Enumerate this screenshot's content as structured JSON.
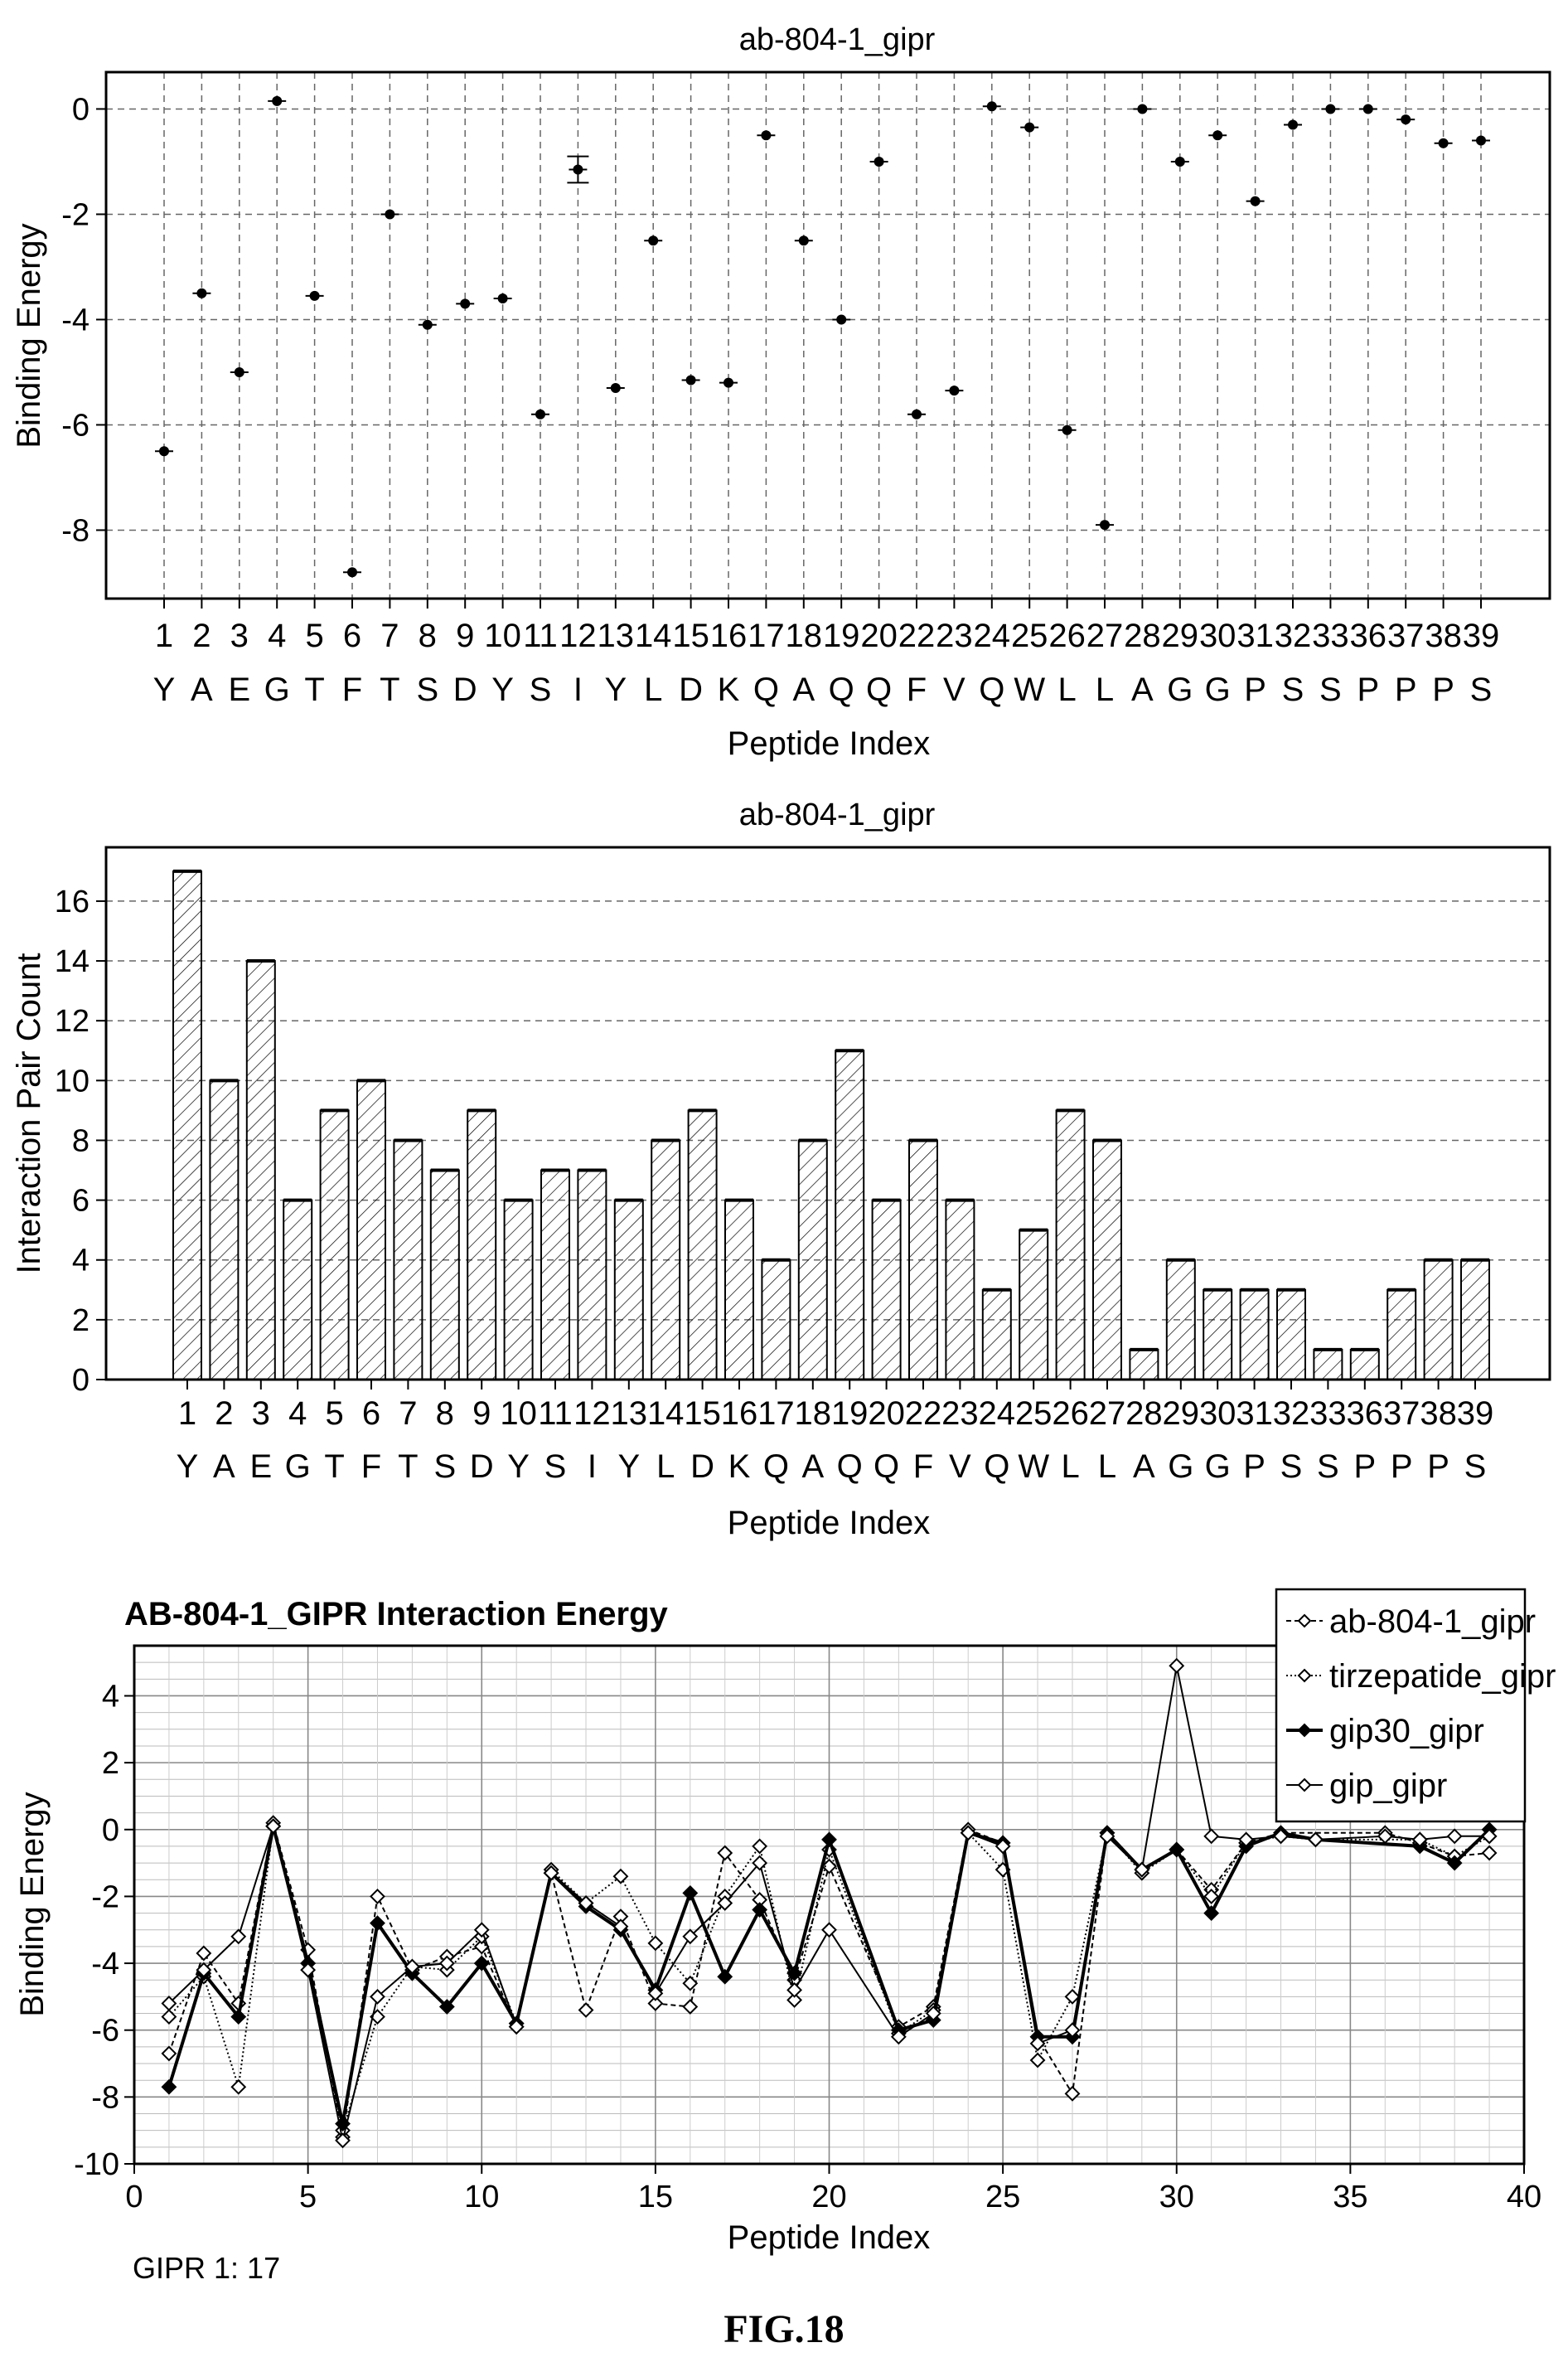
{
  "figure_label": "FIG.18",
  "chart_data": [
    {
      "type": "scatter",
      "title": "ab-804-1_gipr",
      "xlabel": "Peptide Index",
      "ylabel": "Binding Energy",
      "ylim": [
        -9.3,
        0.7
      ],
      "yticks": [
        0,
        -2,
        -4,
        -6,
        -8
      ],
      "grid": true,
      "categories": [
        "1",
        "2",
        "3",
        "4",
        "5",
        "6",
        "7",
        "8",
        "9",
        "10",
        "11",
        "12",
        "13",
        "14",
        "15",
        "16",
        "17",
        "18",
        "19",
        "20",
        "22",
        "23",
        "24",
        "25",
        "26",
        "27",
        "28",
        "29",
        "30",
        "31",
        "32",
        "33",
        "36",
        "37",
        "38",
        "39"
      ],
      "residues": [
        "Y",
        "A",
        "E",
        "G",
        "T",
        "F",
        "T",
        "S",
        "D",
        "Y",
        "S",
        "I",
        "Y",
        "L",
        "D",
        "K",
        "Q",
        "A",
        "Q",
        "Q",
        "F",
        "V",
        "Q",
        "W",
        "L",
        "L",
        "A",
        "G",
        "G",
        "P",
        "S",
        "S",
        "P",
        "P",
        "P",
        "S"
      ],
      "values": [
        -6.5,
        -3.5,
        -5.0,
        0.15,
        -3.55,
        -8.8,
        -2.0,
        -4.1,
        -3.7,
        -3.6,
        -5.8,
        -1.15,
        -5.3,
        -2.5,
        -5.15,
        -5.2,
        -0.5,
        -2.5,
        -4.0,
        -1.0,
        -5.8,
        -5.35,
        0.05,
        -0.35,
        -6.1,
        -7.9,
        0.0,
        -1.0,
        -0.5,
        -1.75,
        -0.3,
        0.0,
        0.0,
        -0.2,
        -0.65,
        -0.6
      ],
      "error": [
        0,
        0,
        0,
        0,
        0,
        0,
        0,
        0,
        0,
        0,
        0,
        0.25,
        0,
        0,
        0,
        0,
        0,
        0,
        0,
        0,
        0,
        0,
        0,
        0,
        0,
        0,
        0,
        0,
        0,
        0,
        0,
        0,
        0,
        0,
        0,
        0
      ]
    },
    {
      "type": "bar",
      "title": "ab-804-1_gipr",
      "xlabel": "Peptide Index",
      "ylabel": "Interaction Pair Count",
      "ylim": [
        0,
        17.8
      ],
      "yticks": [
        0,
        2,
        4,
        6,
        8,
        10,
        12,
        14,
        16
      ],
      "grid": true,
      "categories": [
        "1",
        "2",
        "3",
        "4",
        "5",
        "6",
        "7",
        "8",
        "9",
        "10",
        "11",
        "12",
        "13",
        "14",
        "15",
        "16",
        "17",
        "18",
        "19",
        "20",
        "22",
        "23",
        "24",
        "25",
        "26",
        "27",
        "28",
        "29",
        "30",
        "31",
        "32",
        "33",
        "36",
        "37",
        "38",
        "39"
      ],
      "residues": [
        "Y",
        "A",
        "E",
        "G",
        "T",
        "F",
        "T",
        "S",
        "D",
        "Y",
        "S",
        "I",
        "Y",
        "L",
        "D",
        "K",
        "Q",
        "A",
        "Q",
        "Q",
        "F",
        "V",
        "Q",
        "W",
        "L",
        "L",
        "A",
        "G",
        "G",
        "P",
        "S",
        "S",
        "P",
        "P",
        "P",
        "S"
      ],
      "values": [
        17,
        10,
        14,
        6,
        9,
        10,
        8,
        7,
        9,
        6,
        7,
        7,
        6,
        8,
        9,
        6,
        4,
        8,
        11,
        6,
        8,
        6,
        3,
        5,
        9,
        8,
        1,
        4,
        3,
        3,
        3,
        1,
        1,
        3,
        4,
        4
      ]
    },
    {
      "type": "line",
      "title": "AB-804-1_GIPR Interaction Energy",
      "xlabel": "Peptide Index",
      "ylabel": "Binding Energy",
      "xlim": [
        0,
        40
      ],
      "ylim": [
        -10,
        5.5
      ],
      "xticks": [
        0,
        5,
        10,
        15,
        20,
        25,
        30,
        35,
        40
      ],
      "yticks": [
        4,
        2,
        0,
        -2,
        -4,
        -6,
        -8,
        -10
      ],
      "grid": true,
      "legend": "top-right",
      "footnote": "GIPR 1: 17",
      "series": [
        {
          "name": "ab-804-1_gipr",
          "marker": "open-diamond",
          "dash": "6,4",
          "x": [
            1,
            2,
            3,
            4,
            5,
            6,
            7,
            8,
            9,
            10,
            11,
            12,
            13,
            14,
            15,
            16,
            17,
            18,
            19,
            20,
            22,
            23,
            24,
            25,
            26,
            27,
            28,
            29,
            30,
            31,
            32,
            33,
            36,
            37,
            38,
            39
          ],
          "y": [
            -6.7,
            -3.7,
            -5.2,
            0.2,
            -3.6,
            -9.2,
            -2.0,
            -4.2,
            -3.8,
            -3.5,
            -5.9,
            -1.3,
            -5.4,
            -2.6,
            -5.2,
            -5.3,
            -0.7,
            -2.1,
            -4.5,
            -1.1,
            -5.9,
            -5.3,
            0.0,
            -0.4,
            -6.2,
            -7.9,
            -0.1,
            -1.2,
            -0.6,
            -1.8,
            -0.4,
            -0.1,
            -0.1,
            -0.4,
            -0.8,
            -0.7
          ]
        },
        {
          "name": "tirzepatide_gipr",
          "marker": "open-diamond",
          "dash": "2,3",
          "x": [
            1,
            2,
            3,
            4,
            5,
            6,
            7,
            8,
            9,
            10,
            11,
            12,
            13,
            14,
            15,
            16,
            17,
            18,
            19,
            20,
            22,
            23,
            24,
            25,
            26,
            27,
            28,
            29,
            30,
            31,
            32,
            33,
            34,
            37,
            38,
            39
          ],
          "y": [
            -5.6,
            -4.4,
            -7.7,
            0.1,
            -4.0,
            -9.0,
            -5.6,
            -4.1,
            -4.2,
            -3.2,
            -5.8,
            -1.2,
            -2.2,
            -1.4,
            -3.4,
            -4.6,
            -2.0,
            -0.5,
            -5.1,
            -0.6,
            -6.1,
            -5.4,
            -0.1,
            -1.2,
            -6.9,
            -5.0,
            -0.1,
            -1.3,
            -0.6,
            -2.0,
            -0.4,
            -0.2,
            -0.3,
            -0.3,
            -0.8,
            -0.2
          ]
        },
        {
          "name": "gip30_gipr",
          "marker": "filled-diamond",
          "dash": "",
          "x": [
            1,
            2,
            3,
            4,
            5,
            6,
            7,
            8,
            9,
            10,
            11,
            12,
            13,
            14,
            15,
            16,
            17,
            18,
            19,
            20,
            22,
            23,
            24,
            25,
            26,
            27,
            28,
            29,
            30,
            31,
            32,
            33,
            34,
            37,
            38,
            39
          ],
          "y": [
            -7.7,
            -4.3,
            -5.6,
            0.1,
            -4.0,
            -8.8,
            -2.8,
            -4.3,
            -5.3,
            -4.0,
            -5.8,
            -1.3,
            -2.3,
            -3.0,
            -4.8,
            -1.9,
            -4.4,
            -2.4,
            -4.3,
            -0.3,
            -6.0,
            -5.7,
            -0.1,
            -0.4,
            -6.2,
            -6.2,
            -0.1,
            -1.2,
            -0.6,
            -2.5,
            -0.5,
            -0.1,
            -0.3,
            -0.5,
            -1.0,
            0.0
          ]
        },
        {
          "name": "gip_gipr",
          "marker": "open-diamond",
          "dash": "",
          "x": [
            1,
            2,
            3,
            4,
            5,
            6,
            7,
            8,
            9,
            10,
            11,
            12,
            13,
            14,
            15,
            16,
            17,
            18,
            19,
            20,
            22,
            23,
            24,
            25,
            26,
            27,
            28,
            29,
            30,
            31,
            32,
            33,
            34,
            36,
            37,
            38,
            39
          ],
          "y": [
            -5.2,
            -4.2,
            -3.2,
            0.1,
            -4.2,
            -9.3,
            -5.0,
            -4.1,
            -4.0,
            -3.0,
            -5.9,
            -1.3,
            -2.2,
            -2.9,
            -4.9,
            -3.2,
            -2.2,
            -1.0,
            -4.8,
            -3.0,
            -6.2,
            -5.5,
            -0.1,
            -0.5,
            -6.4,
            -6.0,
            -0.2,
            -1.2,
            4.9,
            -0.2,
            -0.3,
            -0.2,
            -0.3,
            -0.2,
            -0.3,
            -0.2,
            -0.2
          ]
        }
      ]
    }
  ]
}
